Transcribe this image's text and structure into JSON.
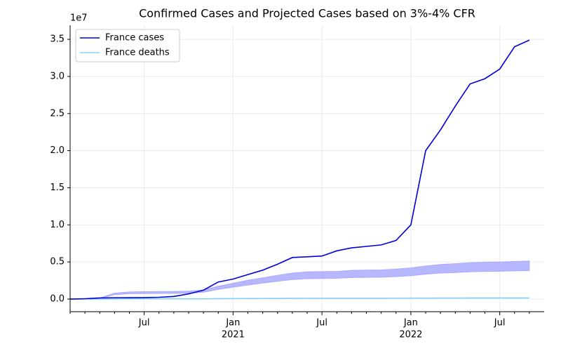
{
  "chart_data": {
    "type": "line",
    "title": "Confirmed Cases and Projected Cases based on 3%-4% CFR",
    "y_offset_label": "1e7",
    "x": [
      "2020-02",
      "2020-03",
      "2020-04",
      "2020-05",
      "2020-06",
      "2020-07",
      "2020-08",
      "2020-09",
      "2020-10",
      "2020-11",
      "2020-12",
      "2021-01",
      "2021-02",
      "2021-03",
      "2021-04",
      "2021-05",
      "2021-06",
      "2021-07",
      "2021-08",
      "2021-09",
      "2021-10",
      "2021-11",
      "2021-12",
      "2022-01",
      "2022-02",
      "2022-03",
      "2022-04",
      "2022-05",
      "2022-06",
      "2022-07",
      "2022-08",
      "2022-09"
    ],
    "series": [
      {
        "name": "France cases",
        "color": "#0000dd",
        "values": [
          0,
          50000,
          150000,
          180000,
          190000,
          200000,
          240000,
          350000,
          700000,
          1200000,
          2300000,
          2700000,
          3300000,
          3900000,
          4700000,
          5600000,
          5700000,
          5800000,
          6500000,
          6900000,
          7100000,
          7300000,
          7900000,
          10000000,
          20000000,
          22800000,
          26000000,
          29000000,
          29700000,
          31000000,
          34000000,
          34900000
        ]
      },
      {
        "name": "France deaths",
        "color": "#87cefa",
        "values": [
          0,
          100,
          4000,
          24000,
          28800,
          29900,
          30300,
          30700,
          32000,
          37000,
          52000,
          64000,
          76000,
          86000,
          96000,
          105000,
          110000,
          111000,
          112000,
          116000,
          117000,
          118000,
          121000,
          126000,
          134000,
          140000,
          143000,
          147000,
          149000,
          150000,
          152000,
          154000
        ]
      }
    ],
    "band": {
      "color": "#aaaaff",
      "upper": [
        0,
        3300,
        133000,
        800000,
        960000,
        997000,
        1010000,
        1023000,
        1067000,
        1233000,
        1733000,
        2133000,
        2533000,
        2867000,
        3200000,
        3500000,
        3667000,
        3700000,
        3733000,
        3867000,
        3900000,
        3933000,
        4033000,
        4200000,
        4467000,
        4667000,
        4767000,
        4900000,
        4967000,
        5000000,
        5067000,
        5133000
      ],
      "lower": [
        0,
        2500,
        100000,
        600000,
        720000,
        748000,
        758000,
        768000,
        800000,
        925000,
        1300000,
        1600000,
        1900000,
        2150000,
        2400000,
        2625000,
        2750000,
        2775000,
        2800000,
        2900000,
        2925000,
        2950000,
        3025000,
        3150000,
        3350000,
        3500000,
        3575000,
        3675000,
        3725000,
        3750000,
        3800000,
        3850000
      ]
    },
    "xlim": [
      "2020-02",
      "2022-10"
    ],
    "xticks": [
      {
        "value": "2020-07",
        "label": "Jul"
      },
      {
        "value": "2021-01",
        "label": "Jan",
        "sublabel": "2021"
      },
      {
        "value": "2021-07",
        "label": "Jul"
      },
      {
        "value": "2022-01",
        "label": "Jan",
        "sublabel": "2022"
      },
      {
        "value": "2022-07",
        "label": "Jul"
      }
    ],
    "xminorticks": [
      "2020-02",
      "2020-03",
      "2020-04",
      "2020-05",
      "2020-06",
      "2020-08",
      "2020-09",
      "2020-10",
      "2020-11",
      "2020-12",
      "2021-02",
      "2021-03",
      "2021-04",
      "2021-05",
      "2021-06",
      "2021-08",
      "2021-09",
      "2021-10",
      "2021-11",
      "2021-12",
      "2022-02",
      "2022-03",
      "2022-04",
      "2022-05",
      "2022-06",
      "2022-08",
      "2022-09"
    ],
    "ylim": [
      -1700000,
      36900000
    ],
    "yticks": [
      {
        "value": 0,
        "label": "0.0"
      },
      {
        "value": 5000000,
        "label": "0.5"
      },
      {
        "value": 10000000,
        "label": "1.0"
      },
      {
        "value": 15000000,
        "label": "1.5"
      },
      {
        "value": 20000000,
        "label": "2.0"
      },
      {
        "value": 25000000,
        "label": "2.5"
      },
      {
        "value": 30000000,
        "label": "3.0"
      },
      {
        "value": 35000000,
        "label": "3.5"
      }
    ],
    "grid": true,
    "legend": "upper left"
  }
}
